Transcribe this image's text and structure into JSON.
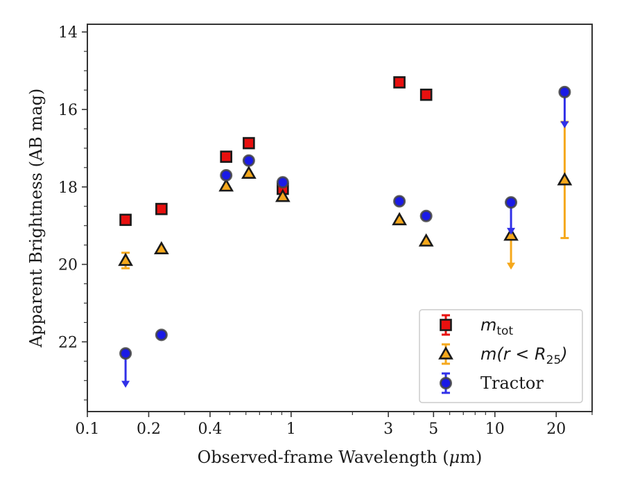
{
  "chart_data": {
    "type": "scatter",
    "xscale": "log",
    "xlim": [
      0.1,
      30
    ],
    "ylim": [
      23.8,
      13.8
    ],
    "y_inverted": true,
    "xlabel_prefix": "Observed-frame Wavelength (",
    "xlabel_mu": "μ",
    "xlabel_suffix": "m)",
    "ylabel": "Apparent Brightness (AB mag)",
    "xticks": [
      {
        "value": 0.1,
        "label": "0.1"
      },
      {
        "value": 0.2,
        "label": "0.2"
      },
      {
        "value": 0.4,
        "label": "0.4"
      },
      {
        "value": 1,
        "label": "1"
      },
      {
        "value": 3,
        "label": "3"
      },
      {
        "value": 5,
        "label": "5"
      },
      {
        "value": 10,
        "label": "10"
      },
      {
        "value": 20,
        "label": "20"
      }
    ],
    "yticks": [
      {
        "value": 14,
        "label": "14"
      },
      {
        "value": 16,
        "label": "16"
      },
      {
        "value": 18,
        "label": "18"
      },
      {
        "value": 20,
        "label": "20"
      },
      {
        "value": 22,
        "label": "22"
      }
    ],
    "legend_position": "lower-right",
    "series": [
      {
        "key": "mtot",
        "legend_main": "m",
        "legend_sub": "tot",
        "marker": "square",
        "face_color": "#e8100f",
        "edge_color": "#1a1a1a",
        "err_color": "#e8100f",
        "points": [
          {
            "x": 0.154,
            "y": 18.85
          },
          {
            "x": 0.231,
            "y": 18.57
          },
          {
            "x": 0.48,
            "y": 17.22
          },
          {
            "x": 0.62,
            "y": 16.87
          },
          {
            "x": 0.91,
            "y": 18.05
          },
          {
            "x": 3.4,
            "y": 15.3
          },
          {
            "x": 4.6,
            "y": 15.62
          }
        ]
      },
      {
        "key": "mr25",
        "legend_main": "m(r < R",
        "legend_sub": "25",
        "legend_tail": ")",
        "marker": "triangle",
        "face_color": "#f5a81c",
        "edge_color": "#1a1a1a",
        "err_color": "#f5a81c",
        "points": [
          {
            "x": 0.154,
            "y": 19.9,
            "err": 0.2
          },
          {
            "x": 0.231,
            "y": 19.6
          },
          {
            "x": 0.48,
            "y": 17.98
          },
          {
            "x": 0.62,
            "y": 17.65
          },
          {
            "x": 0.91,
            "y": 18.25
          },
          {
            "x": 3.4,
            "y": 18.85
          },
          {
            "x": 4.6,
            "y": 19.4
          },
          {
            "x": 12.0,
            "y": 19.25,
            "upper_limit_to": 20.1
          },
          {
            "x": 22.0,
            "y": 17.82,
            "err": 1.5
          }
        ]
      },
      {
        "key": "tractor",
        "legend_main": "Tractor",
        "marker": "circle",
        "face_color": "#1a1ae6",
        "edge_color": "#444444",
        "err_color": "#3030e8",
        "points": [
          {
            "x": 0.154,
            "y": 22.3,
            "upper_limit_to": 23.15
          },
          {
            "x": 0.231,
            "y": 21.82
          },
          {
            "x": 0.48,
            "y": 17.7
          },
          {
            "x": 0.62,
            "y": 17.32
          },
          {
            "x": 0.91,
            "y": 17.88
          },
          {
            "x": 3.4,
            "y": 18.37
          },
          {
            "x": 4.6,
            "y": 18.75
          },
          {
            "x": 12.0,
            "y": 18.4,
            "upper_limit_to": 19.2
          },
          {
            "x": 22.0,
            "y": 15.55,
            "upper_limit_to": 16.45
          }
        ]
      }
    ]
  }
}
